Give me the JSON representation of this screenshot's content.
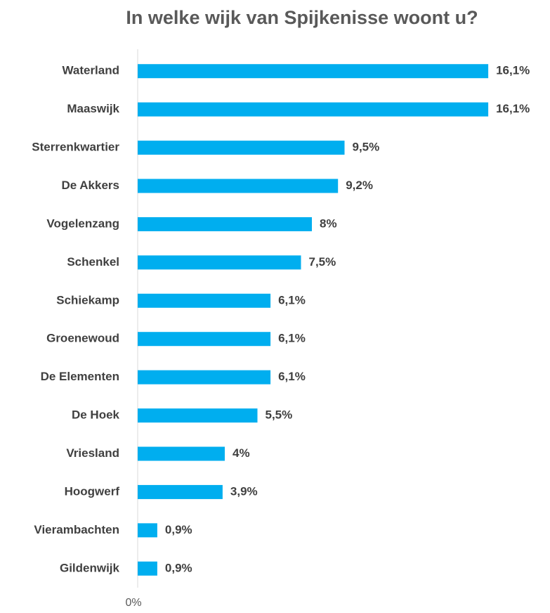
{
  "chart_data": {
    "type": "barh",
    "title": "In welke wijk van Spijkenisse woont u?",
    "categories": [
      "Waterland",
      "Maaswijk",
      "Sterrenkwartier",
      "De Akkers",
      "Vogelenzang",
      "Schenkel",
      "Schiekamp",
      "Groenewoud",
      "De Elementen",
      "De Hoek",
      "Vriesland",
      "Hoogwerf",
      "Vierambachten",
      "Gildenwijk"
    ],
    "values": [
      16.1,
      16.1,
      9.5,
      9.2,
      8,
      7.5,
      6.1,
      6.1,
      6.1,
      5.5,
      4,
      3.9,
      0.9,
      0.9
    ],
    "value_labels": [
      "16,1%",
      "16,1%",
      "9,5%",
      "9,2%",
      "8%",
      "7,5%",
      "6,1%",
      "6,1%",
      "6,1%",
      "5,5%",
      "4%",
      "3,9%",
      "0,9%",
      "0,9%"
    ],
    "color": "#00aeef",
    "xlim": [
      0,
      18
    ],
    "xticks": [
      {
        "value": 0,
        "label": "0%"
      }
    ],
    "grid": false
  }
}
